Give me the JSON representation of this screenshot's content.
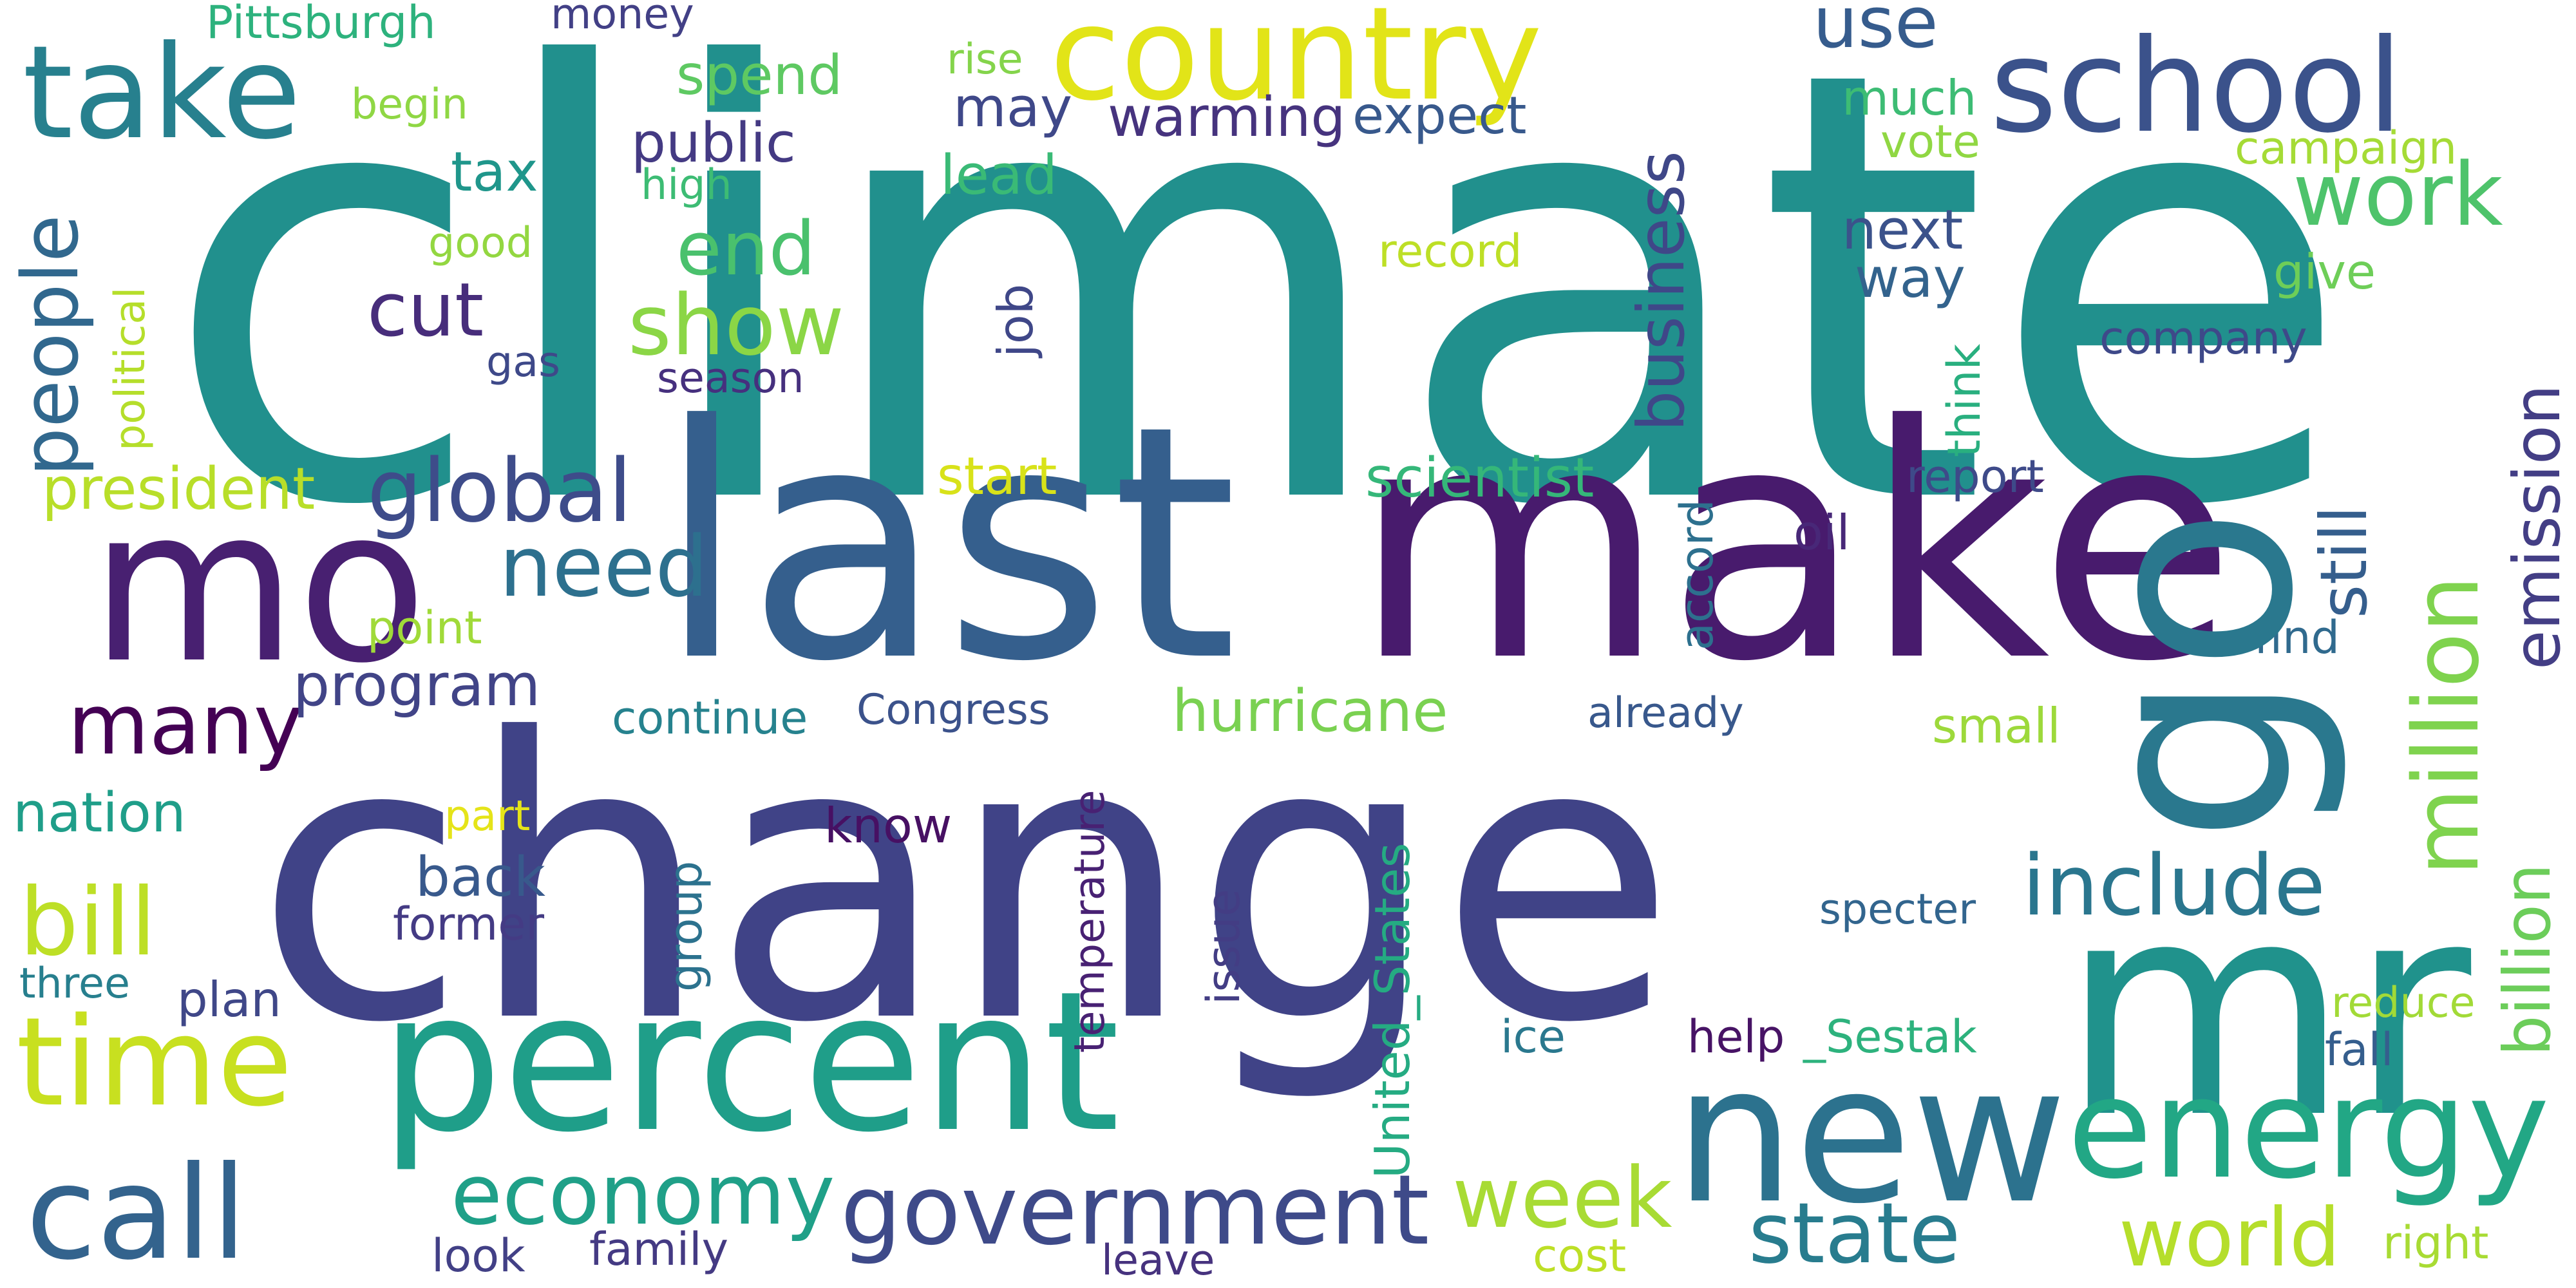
{
  "words": [
    {
      "text": "climate",
      "color": "#21908d"
    },
    {
      "text": "change",
      "color": "#404387"
    },
    {
      "text": "last",
      "color": "#355f8d"
    },
    {
      "text": "make",
      "color": "#481b6d"
    },
    {
      "text": "go",
      "color": "#2a788e"
    },
    {
      "text": "mr",
      "color": "#20928c"
    },
    {
      "text": "mo",
      "color": "#482071"
    },
    {
      "text": "percent",
      "color": "#1f9e89"
    },
    {
      "text": "new",
      "color": "#2c728e"
    },
    {
      "text": "energy",
      "color": "#22a785"
    },
    {
      "text": "country",
      "color": "#e2e418"
    },
    {
      "text": "school",
      "color": "#3b528b"
    },
    {
      "text": "take",
      "color": "#27808e"
    },
    {
      "text": "time",
      "color": "#c8e020"
    },
    {
      "text": "call",
      "color": "#33638d"
    },
    {
      "text": "million",
      "color": "#7fd34e"
    },
    {
      "text": "government",
      "color": "#3e4a89"
    },
    {
      "text": "people",
      "color": "#31688e"
    },
    {
      "text": "bill",
      "color": "#bddf26"
    },
    {
      "text": "emission",
      "color": "#433e85"
    },
    {
      "text": "business",
      "color": "#3f4788"
    },
    {
      "text": "global",
      "color": "#3e4c8a"
    },
    {
      "text": "many",
      "color": "#440154"
    },
    {
      "text": "need",
      "color": "#2d708e"
    },
    {
      "text": "work",
      "color": "#4ec36b"
    },
    {
      "text": "economy",
      "color": "#1fa088"
    },
    {
      "text": "week",
      "color": "#a8db34"
    },
    {
      "text": "state",
      "color": "#287c8e"
    },
    {
      "text": "world",
      "color": "#b5de2b"
    },
    {
      "text": "include",
      "color": "#2a768e"
    },
    {
      "text": "still",
      "color": "#355e8d"
    },
    {
      "text": "billion",
      "color": "#6ccd5a"
    },
    {
      "text": "show",
      "color": "#8bd646"
    },
    {
      "text": "cut",
      "color": "#472d7b"
    },
    {
      "text": "end",
      "color": "#4ac16d"
    },
    {
      "text": "use",
      "color": "#365c8d"
    },
    {
      "text": "president",
      "color": "#b8de29"
    },
    {
      "text": "program",
      "color": "#414487"
    },
    {
      "text": "hurricane",
      "color": "#7ad151"
    },
    {
      "text": "scientist",
      "color": "#35b779"
    },
    {
      "text": "warming",
      "color": "#46337e"
    },
    {
      "text": "expect",
      "color": "#38598c"
    },
    {
      "text": "spend",
      "color": "#5ec962"
    },
    {
      "text": "may",
      "color": "#3f4889"
    },
    {
      "text": "public",
      "color": "#443a83"
    },
    {
      "text": "tax",
      "color": "#1f968b"
    },
    {
      "text": "lead",
      "color": "#3aba76"
    },
    {
      "text": "next",
      "color": "#3b528b"
    },
    {
      "text": "way",
      "color": "#33638d"
    },
    {
      "text": "much",
      "color": "#3dbc74"
    },
    {
      "text": "vote",
      "color": "#90d743"
    },
    {
      "text": "campaign",
      "color": "#a5db36"
    },
    {
      "text": "give",
      "color": "#6ece58"
    },
    {
      "text": "company",
      "color": "#3e4989"
    },
    {
      "text": "Pittsburgh",
      "color": "#2db27d"
    },
    {
      "text": "money",
      "color": "#424086"
    },
    {
      "text": "rise",
      "color": "#84d44b"
    },
    {
      "text": "begin",
      "color": "#8fd744"
    },
    {
      "text": "high",
      "color": "#3dbc74"
    },
    {
      "text": "good",
      "color": "#93d741"
    },
    {
      "text": "record",
      "color": "#bddf26"
    },
    {
      "text": "gas",
      "color": "#3e4989"
    },
    {
      "text": "season",
      "color": "#46307e"
    },
    {
      "text": "political",
      "color": "#b5de2b"
    },
    {
      "text": "job",
      "color": "#3f4788"
    },
    {
      "text": "think",
      "color": "#29af7f"
    },
    {
      "text": "start",
      "color": "#d8e219"
    },
    {
      "text": "point",
      "color": "#a0da39"
    },
    {
      "text": "oil",
      "color": "#482878"
    },
    {
      "text": "report",
      "color": "#3e4a89"
    },
    {
      "text": "accord",
      "color": "#2d708e"
    },
    {
      "text": "find",
      "color": "#306a8e"
    },
    {
      "text": "continue",
      "color": "#26828e"
    },
    {
      "text": "Congress",
      "color": "#3b528b"
    },
    {
      "text": "already",
      "color": "#38588c"
    },
    {
      "text": "small",
      "color": "#9dd93b"
    },
    {
      "text": "temperature",
      "color": "#482173"
    },
    {
      "text": "nation",
      "color": "#1f9e89"
    },
    {
      "text": "part",
      "color": "#e5e419"
    },
    {
      "text": "know",
      "color": "#471063"
    },
    {
      "text": "back",
      "color": "#38598c"
    },
    {
      "text": "former",
      "color": "#443b84"
    },
    {
      "text": "group",
      "color": "#2c728e"
    },
    {
      "text": "United_States",
      "color": "#25ab82"
    },
    {
      "text": "issue",
      "color": "#433d84"
    },
    {
      "text": "specter",
      "color": "#32658e"
    },
    {
      "text": "three",
      "color": "#277f8e"
    },
    {
      "text": "plan",
      "color": "#3f4788"
    },
    {
      "text": "ice",
      "color": "#2a788e"
    },
    {
      "text": "help",
      "color": "#471365"
    },
    {
      "text": "_Sestak",
      "color": "#2db27d"
    },
    {
      "text": "reduce",
      "color": "#a2da37"
    },
    {
      "text": "fall",
      "color": "#355e8d"
    },
    {
      "text": "look",
      "color": "#424086"
    },
    {
      "text": "family",
      "color": "#443a83"
    },
    {
      "text": "leave",
      "color": "#46327e"
    },
    {
      "text": "cost",
      "color": "#bddf26"
    },
    {
      "text": "right",
      "color": "#a8db34"
    }
  ]
}
